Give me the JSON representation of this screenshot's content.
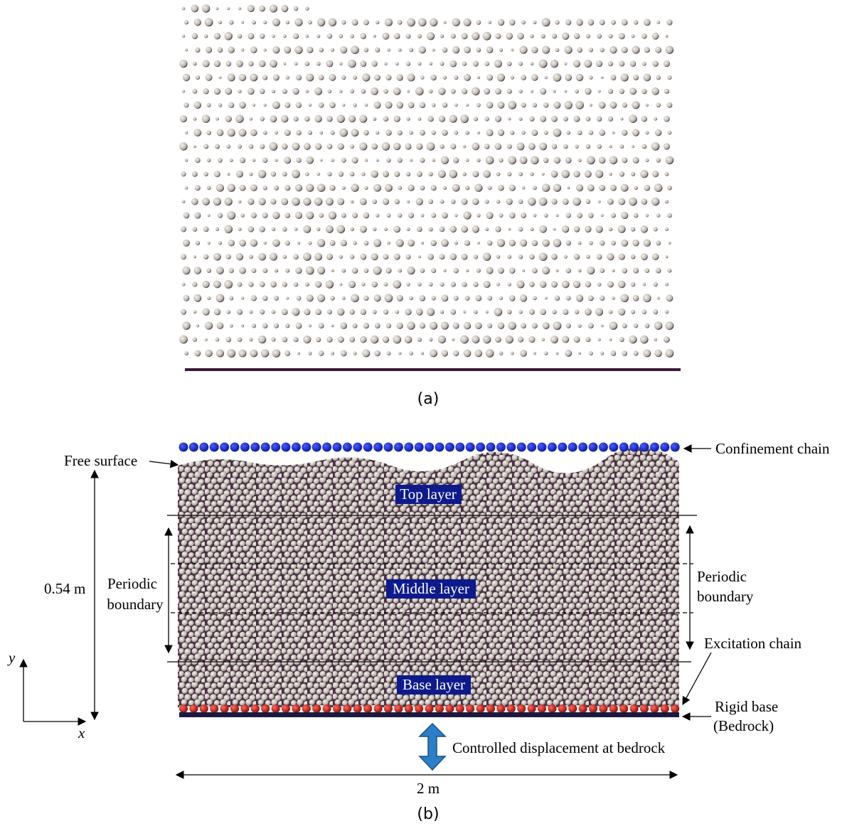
{
  "panel_a": {
    "label": "(a)"
  },
  "panel_b": {
    "label": "(b)",
    "confinement_chain": "Confinement chain",
    "free_surface": "Free surface",
    "top_layer": "Top layer",
    "middle_layer": "Middle layer",
    "base_layer": "Base layer",
    "height": "0.54 m",
    "periodic_left": [
      "Periodic",
      "boundary"
    ],
    "periodic_right": [
      "Periodic",
      "boundary"
    ],
    "excitation_chain": "Excitation chain",
    "rigid_base": [
      "Rigid base",
      "(Bedrock)"
    ],
    "controlled_displacement": "Controlled displacement at bedrock",
    "width": "2 m",
    "axis_y": "y",
    "axis_x": "x"
  }
}
